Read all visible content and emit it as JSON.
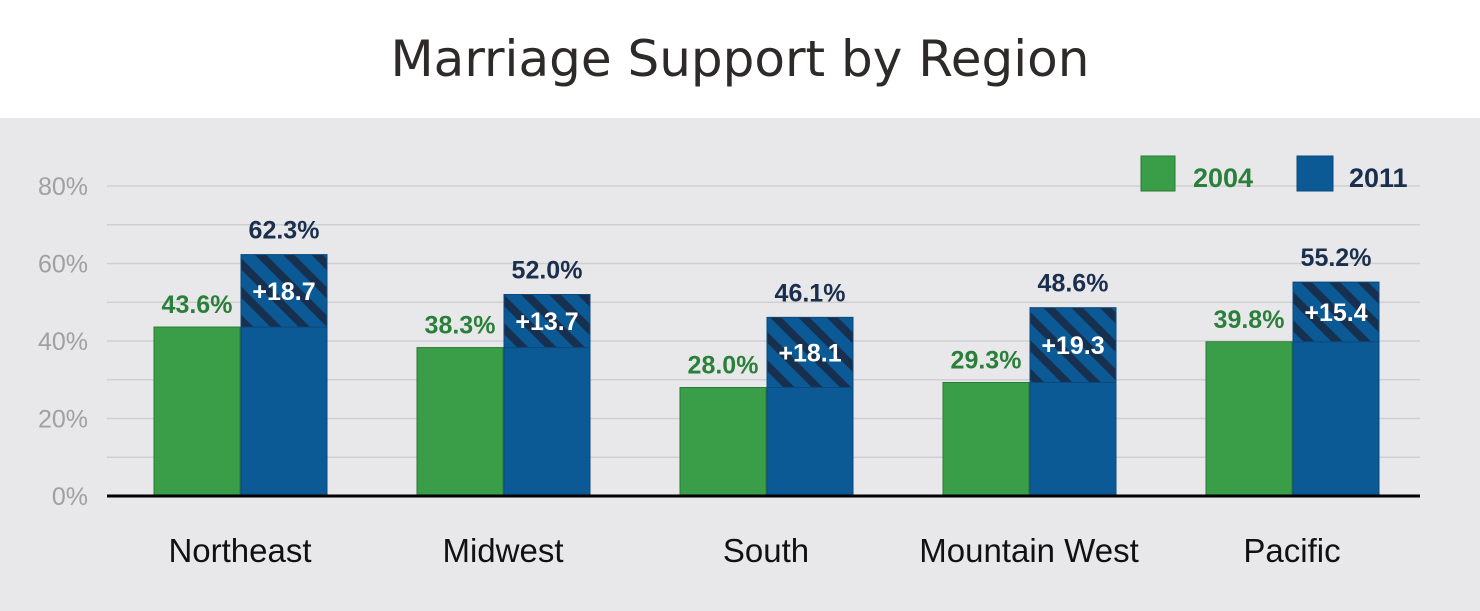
{
  "chart_data": {
    "type": "bar",
    "title": "Marriage Support by Region",
    "categories": [
      "Northeast",
      "Midwest",
      "South",
      "Mountain West",
      "Pacific"
    ],
    "series": [
      {
        "name": "2004",
        "values": [
          43.6,
          38.3,
          28.0,
          29.3,
          39.8
        ],
        "labels": [
          "43.6%",
          "38.3%",
          "28.0%",
          "29.3%",
          "39.8%"
        ]
      },
      {
        "name": "2011",
        "values": [
          62.3,
          52.0,
          46.1,
          48.6,
          55.2
        ],
        "labels": [
          "62.3%",
          "52.0%",
          "46.1%",
          "48.6%",
          "55.2%"
        ]
      }
    ],
    "change_labels": [
      "+18.7",
      "+13.7",
      "+18.1",
      "+19.3",
      "+15.4"
    ],
    "ylim": [
      0,
      80
    ],
    "yticks": [
      "0%",
      "20%",
      "40%",
      "60%",
      "80%"
    ],
    "grid": true,
    "legend": "top-right",
    "colors": {
      "2004": "#3a9e48",
      "2011": "#0b5a96",
      "hatch": "#18304f",
      "label_2004": "#2a7f3a",
      "label_2011": "#1a2f4d",
      "axis_tick": "#a0a0a0"
    }
  }
}
